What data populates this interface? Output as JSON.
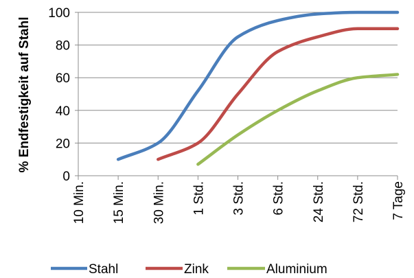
{
  "chart_data": {
    "type": "line",
    "ylabel": "% Endfestigkeit auf Stahl",
    "xlabel": "",
    "title": "",
    "categories": [
      "10 Min.",
      "15 Min.",
      "30 Min.",
      "1 Std.",
      "3 Std.",
      "6 Std.",
      "24 Std.",
      "72 Std.",
      "7 Tage"
    ],
    "ylim": [
      0,
      100
    ],
    "yticks": [
      "0",
      "20",
      "40",
      "60",
      "80",
      "100"
    ],
    "grid": "horizontal",
    "legend_position": "bottom",
    "series": [
      {
        "name": "Stahl",
        "color": "#4a7ebb",
        "points": [
          [
            1,
            10
          ],
          [
            2,
            20
          ],
          [
            3,
            52
          ],
          [
            4,
            85
          ],
          [
            5,
            95
          ],
          [
            6,
            99
          ],
          [
            7,
            100
          ],
          [
            8,
            100
          ]
        ]
      },
      {
        "name": "Zink",
        "color": "#be4b48",
        "points": [
          [
            2,
            10
          ],
          [
            3,
            20
          ],
          [
            4,
            50
          ],
          [
            5,
            76
          ],
          [
            6,
            85
          ],
          [
            7,
            90
          ],
          [
            8,
            90
          ]
        ]
      },
      {
        "name": "Aluminium",
        "color": "#98b954",
        "points": [
          [
            3,
            7
          ],
          [
            4,
            25
          ],
          [
            5,
            40
          ],
          [
            6,
            52
          ],
          [
            7,
            60
          ],
          [
            8,
            62
          ]
        ]
      }
    ]
  }
}
